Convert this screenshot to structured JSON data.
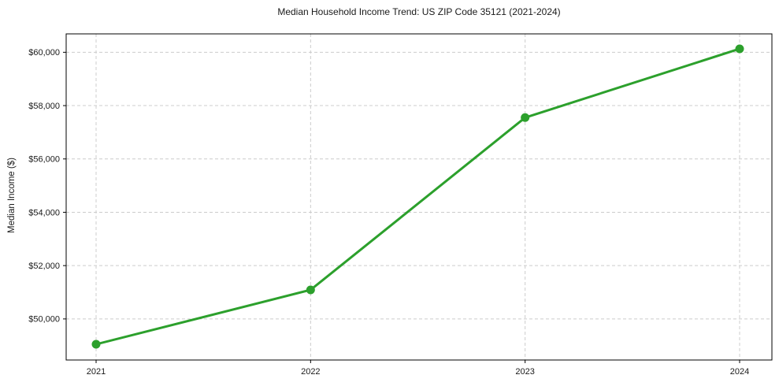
{
  "chart_data": {
    "type": "line",
    "title": "Median Household Income Trend: US ZIP Code 35121 (2021-2024)",
    "xlabel": "",
    "ylabel": "Median Income ($)",
    "x": [
      2021,
      2022,
      2023,
      2024
    ],
    "x_labels": [
      "2021",
      "2022",
      "2023",
      "2024"
    ],
    "series": [
      {
        "name": "Median Household Income",
        "values": [
          49050,
          51090,
          57550,
          60130
        ],
        "color": "#2ca02c",
        "marker": "circle"
      }
    ],
    "y_ticks": [
      {
        "value": 50000,
        "label": "$50,000"
      },
      {
        "value": 52000,
        "label": "$52,000"
      },
      {
        "value": 54000,
        "label": "$54,000"
      },
      {
        "value": 56000,
        "label": "$56,000"
      },
      {
        "value": 58000,
        "label": "$58,000"
      },
      {
        "value": 60000,
        "label": "$60,000"
      }
    ],
    "ylim": [
      48460,
      60690
    ],
    "grid": true,
    "grid_style": "dashed",
    "grid_color": "#cccccc",
    "axes_edge_color": "#000000",
    "tick_color": "#000000",
    "text_color": "#1a1a1a",
    "background": "#ffffff",
    "legend": false
  }
}
